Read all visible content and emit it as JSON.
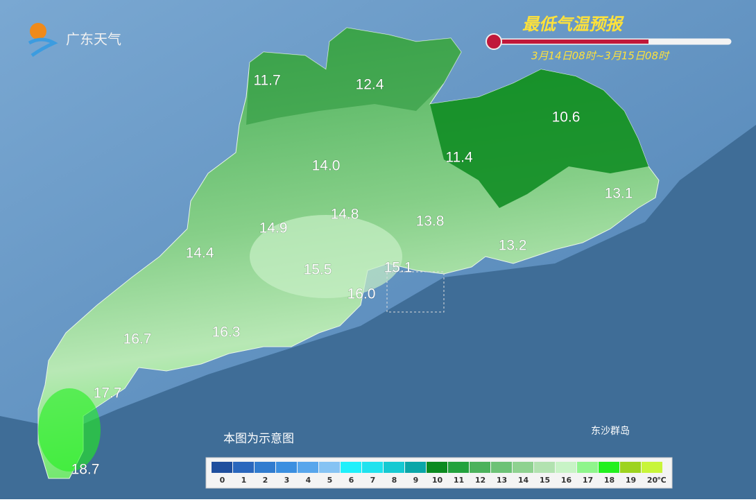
{
  "logo": {
    "text": "广东天气"
  },
  "header": {
    "title": "最低气温预报",
    "subtitle": "3月14日08时~3月15日08时"
  },
  "note": "本图为示意图",
  "island_label": "东沙群岛",
  "map_labels": [
    "11.7",
    "12.4",
    "10.6",
    "14.0",
    "11.4",
    "13.1",
    "14.8",
    "13.8",
    "14.9",
    "13.2",
    "14.4",
    "15.5",
    "15.1",
    "16.0",
    "16.7",
    "16.3",
    "17.7",
    "18.7"
  ],
  "legend": {
    "unit": "℃",
    "items": [
      {
        "label": "0",
        "color": "#1f4f9e"
      },
      {
        "label": "1",
        "color": "#2a67bd"
      },
      {
        "label": "2",
        "color": "#317ccf"
      },
      {
        "label": "3",
        "color": "#3b8fe0"
      },
      {
        "label": "4",
        "color": "#58a6ec"
      },
      {
        "label": "5",
        "color": "#86c3f3"
      },
      {
        "label": "6",
        "color": "#1ff0fb"
      },
      {
        "label": "7",
        "color": "#20e2ee"
      },
      {
        "label": "8",
        "color": "#16c9d2"
      },
      {
        "label": "9",
        "color": "#0aa6a8"
      },
      {
        "label": "10",
        "color": "#0b8a1f"
      },
      {
        "label": "11",
        "color": "#23a23d"
      },
      {
        "label": "12",
        "color": "#4cb25c"
      },
      {
        "label": "13",
        "color": "#6dc276"
      },
      {
        "label": "14",
        "color": "#8fd290"
      },
      {
        "label": "15",
        "color": "#b2e2b0"
      },
      {
        "label": "16",
        "color": "#c8f3c6"
      },
      {
        "label": "17",
        "color": "#8ff58c"
      },
      {
        "label": "18",
        "color": "#22f01e"
      },
      {
        "label": "19",
        "color": "#9dd31f"
      },
      {
        "label": "20",
        "color": "#c8f53a"
      }
    ]
  }
}
